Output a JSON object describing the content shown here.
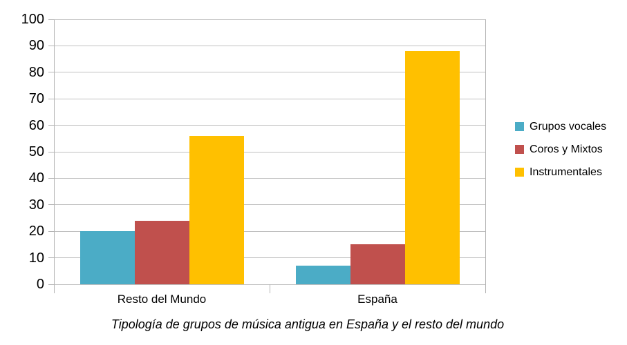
{
  "chart_data": {
    "type": "bar",
    "title": "Tipología de grupos de música antigua en España y el resto del mundo",
    "categories": [
      "Resto del Mundo",
      "España"
    ],
    "series": [
      {
        "name": "Grupos vocales",
        "color": "#4BACC6",
        "values": [
          20,
          7
        ]
      },
      {
        "name": "Coros y Mixtos",
        "color": "#C0504D",
        "values": [
          24,
          15
        ]
      },
      {
        "name": "Instrumentales",
        "color": "#FFC000",
        "values": [
          56,
          88
        ]
      }
    ],
    "ylim": [
      0,
      100
    ],
    "yticks": [
      0,
      10,
      20,
      30,
      40,
      50,
      60,
      70,
      80,
      90,
      100
    ],
    "grid": true,
    "legend_position": "right"
  },
  "colors": {
    "gridline": "#C0C0C0",
    "axis": "#B3B3B3",
    "text": "#000000",
    "background": "#FFFFFF"
  }
}
